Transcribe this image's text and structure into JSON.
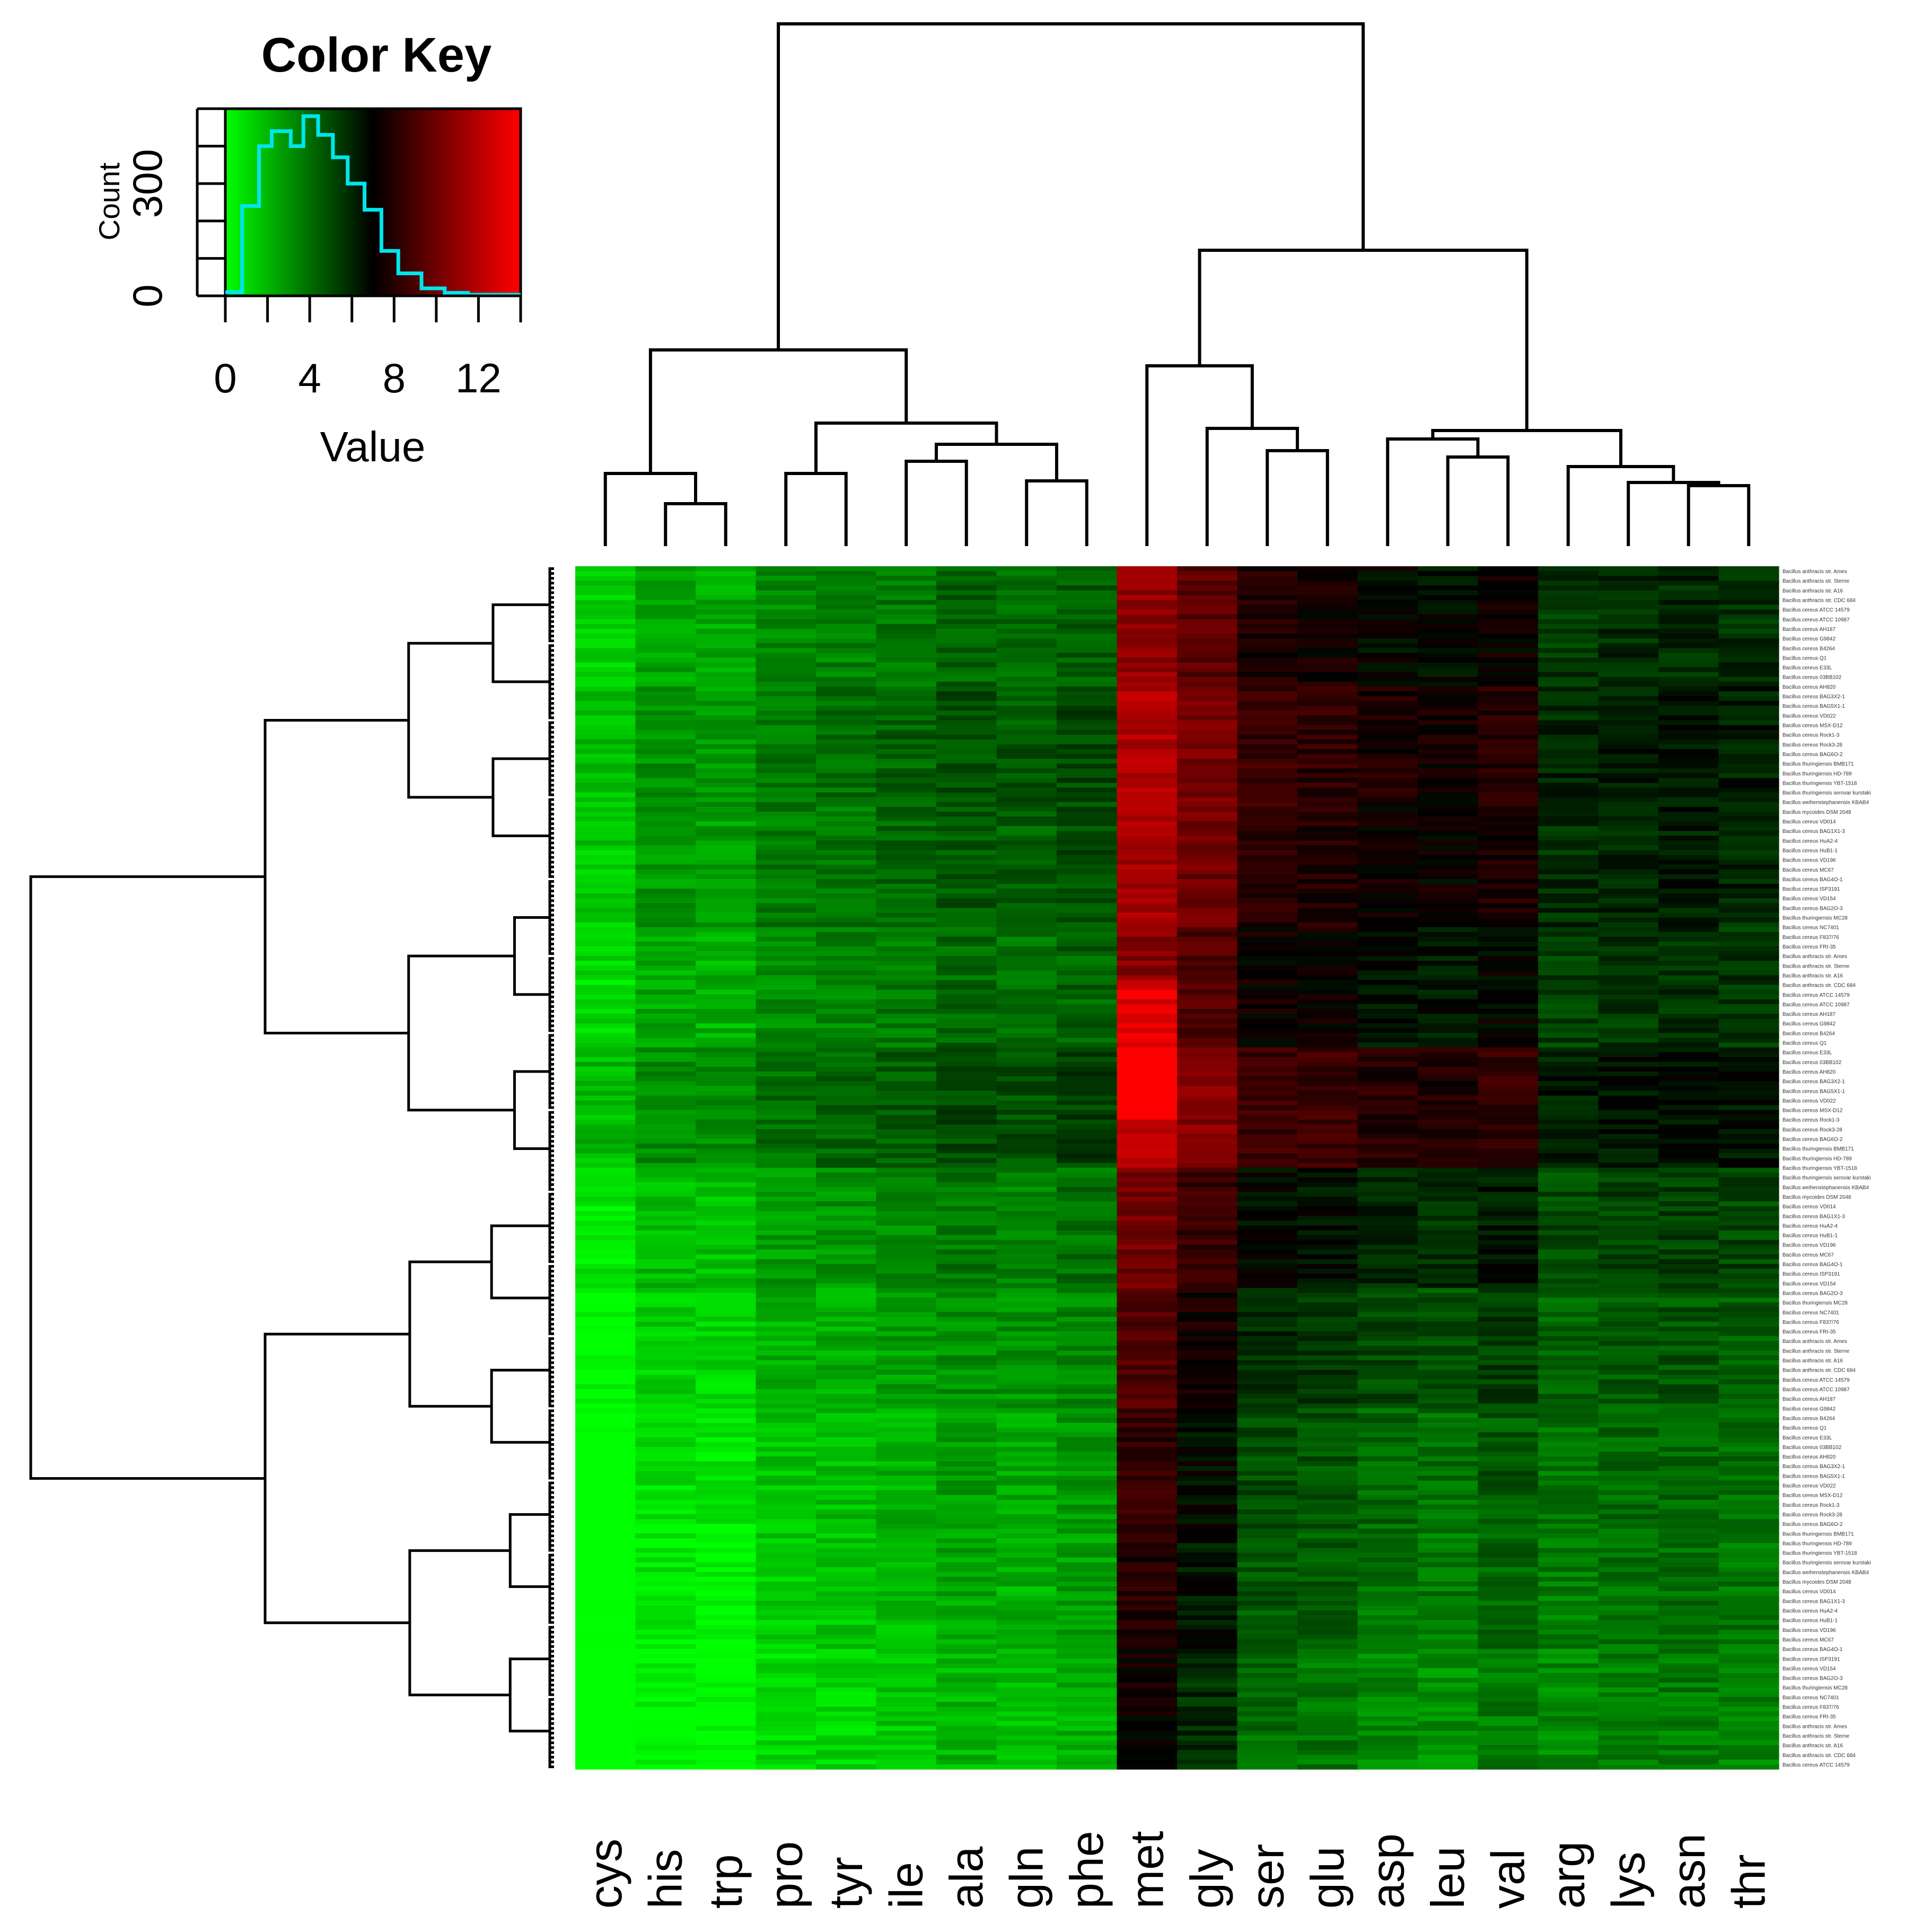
{
  "chart_data": {
    "type": "heatmap",
    "color_key": {
      "title": "Color Key",
      "xlabel": "Value",
      "ylabel": "Count",
      "x_ticks": [
        "0",
        "4",
        "8",
        "12"
      ],
      "y_ticks": [
        "0",
        "300"
      ],
      "xlim": [
        0,
        14
      ],
      "ylim": [
        0,
        500
      ],
      "colors": {
        "low": "#00ff00",
        "mid": "#000000",
        "high": "#ff0000"
      },
      "histogram": {
        "color": "#00e5ee",
        "bins": [
          [
            0,
            0.8,
            10
          ],
          [
            0.8,
            1.6,
            240
          ],
          [
            1.6,
            2.2,
            400
          ],
          [
            2.2,
            3.1,
            440
          ],
          [
            3.1,
            3.7,
            400
          ],
          [
            3.7,
            4.4,
            480
          ],
          [
            4.4,
            5.1,
            430
          ],
          [
            5.1,
            5.8,
            370
          ],
          [
            5.8,
            6.6,
            300
          ],
          [
            6.6,
            7.4,
            230
          ],
          [
            7.4,
            8.2,
            120
          ],
          [
            8.2,
            9.3,
            60
          ],
          [
            9.3,
            10.4,
            20
          ],
          [
            10.4,
            11.5,
            8
          ],
          [
            11.5,
            14,
            3
          ]
        ]
      }
    },
    "columns": [
      "cys",
      "his",
      "trp",
      "pro",
      "tyr",
      "ile",
      "ala",
      "gln",
      "phe",
      "met",
      "gly",
      "ser",
      "glu",
      "asp",
      "leu",
      "val",
      "arg",
      "lys",
      "asn",
      "thr"
    ],
    "column_base_values": [
      0.9,
      2.2,
      2.0,
      3.0,
      3.2,
      3.5,
      4.0,
      3.8,
      4.2,
      10.5,
      9.0,
      7.2,
      7.0,
      6.4,
      6.2,
      6.8,
      5.2,
      5.5,
      5.6,
      5.4
    ],
    "row_bands": [
      {
        "rows": 25,
        "offset": 0.3
      },
      {
        "rows": 25,
        "offset": 0.8
      },
      {
        "rows": 25,
        "offset": 0.6
      },
      {
        "rows": 25,
        "offset": 0.1
      },
      {
        "rows": 25,
        "offset": 1.0
      },
      {
        "rows": 25,
        "offset": -0.3
      },
      {
        "rows": 25,
        "offset": -0.9
      },
      {
        "rows": 25,
        "offset": -1.4
      },
      {
        "rows": 25,
        "offset": -1.6
      },
      {
        "rows": 25,
        "offset": -2.0
      }
    ],
    "row_labels": [
      "Bacillus anthracis str. Ames",
      "Bacillus anthracis str. Sterne",
      "Bacillus anthracis str. A16",
      "Bacillus anthracis str. CDC 684",
      "Bacillus cereus ATCC 14579",
      "Bacillus cereus ATCC 10987",
      "Bacillus cereus AH187",
      "Bacillus cereus G9842",
      "Bacillus cereus B4264",
      "Bacillus cereus Q1",
      "Bacillus cereus E33L",
      "Bacillus cereus 03BB102",
      "Bacillus cereus AH820",
      "Bacillus cereus BAG3X2-1",
      "Bacillus cereus BAG5X1-1",
      "Bacillus cereus VD022",
      "Bacillus cereus MSX-D12",
      "Bacillus cereus Rock1-3",
      "Bacillus cereus Rock3-28",
      "Bacillus cereus BAG6O-2",
      "Bacillus thuringiensis BMB171",
      "Bacillus thuringiensis HD-789",
      "Bacillus thuringiensis YBT-1518",
      "Bacillus thuringiensis serovar kurstaki",
      "Bacillus weihenstephanensis KBAB4",
      "Bacillus mycoides DSM 2048",
      "Bacillus cereus VD014",
      "Bacillus cereus BAG1X1-3",
      "Bacillus cereus HuA2-4",
      "Bacillus cereus HuB1-1",
      "Bacillus cereus VD196",
      "Bacillus cereus MC67",
      "Bacillus cereus BAG4O-1",
      "Bacillus cereus ISP3191",
      "Bacillus cereus VD154",
      "Bacillus cereus BAG2O-3",
      "Bacillus thuringiensis MC28",
      "Bacillus cereus NC7401",
      "Bacillus cereus F837/76",
      "Bacillus cereus FRI-35"
    ],
    "num_rows": 250
  }
}
